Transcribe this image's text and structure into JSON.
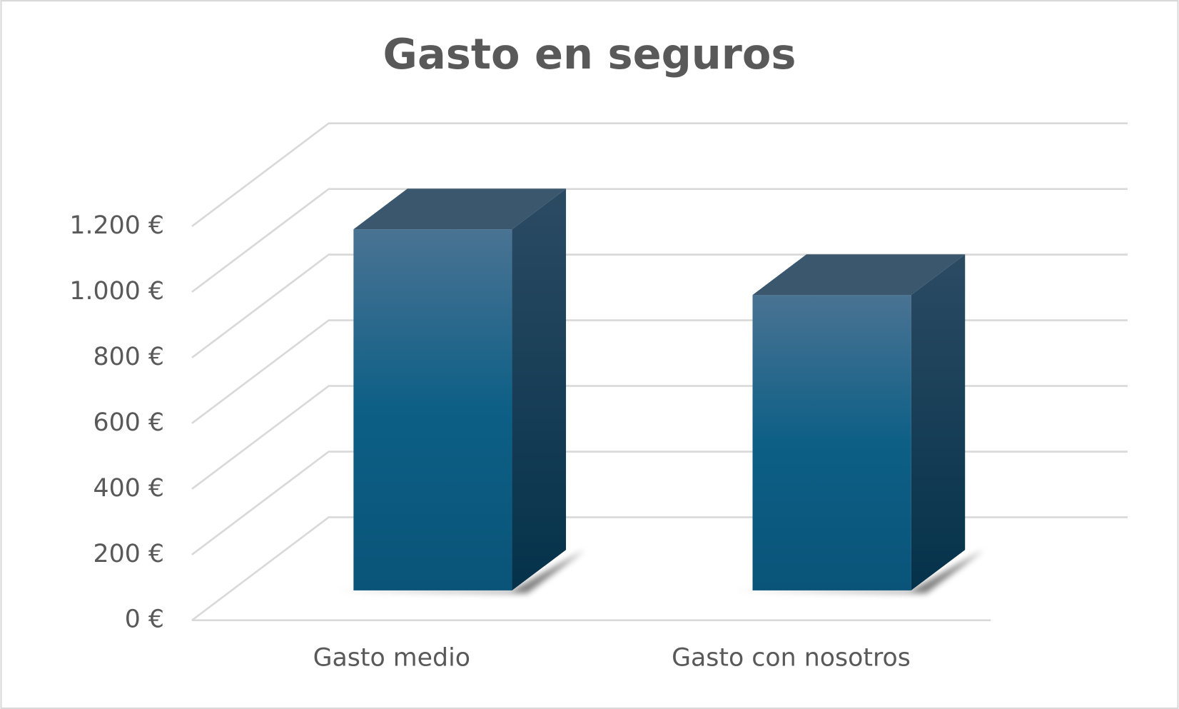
{
  "chart_data": {
    "type": "bar3d",
    "title": "Gasto en seguros",
    "categories": [
      "Gasto medio",
      "Gasto con nosotros"
    ],
    "values": [
      1100,
      900
    ],
    "color": "#0d5f86",
    "ylim": [
      0,
      1200
    ],
    "yticks": [
      {
        "value": 0,
        "label": "0 €"
      },
      {
        "value": 200,
        "label": "200 €"
      },
      {
        "value": 400,
        "label": "400 €"
      },
      {
        "value": 600,
        "label": "600 €"
      },
      {
        "value": 800,
        "label": "800 €"
      },
      {
        "value": 1000,
        "label": "1.000 €"
      },
      {
        "value": 1200,
        "label": "1.200 €"
      }
    ],
    "grid": true
  }
}
